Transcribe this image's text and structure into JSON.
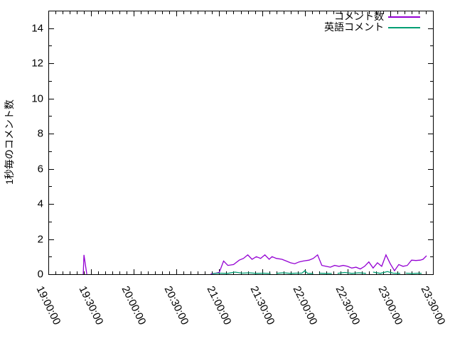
{
  "chart_data": {
    "type": "line",
    "title": "",
    "grid": false,
    "background": "#ffffff",
    "border_color": "#000000",
    "legend_position": "top-right-inside",
    "x_axis": {
      "start_time": "19:00:00",
      "end_time": "23:30:00",
      "tick_interval_minutes": 30,
      "minor_tick_interval_minutes": 5,
      "range_minutes": [
        0,
        270
      ],
      "tick_labels": [
        "19:00:00",
        "19:30:00",
        "20:00:00",
        "20:30:00",
        "21:00:00",
        "21:30:00",
        "22:00:00",
        "22:30:00",
        "23:00:00",
        "23:30:00"
      ]
    },
    "y_axis": {
      "label": "1秒毎のコメント数",
      "min": 0,
      "max": 15,
      "tick_values": [
        0,
        2,
        4,
        6,
        8,
        10,
        12,
        14
      ],
      "tick_labels": [
        "0",
        "2",
        "4",
        "6",
        "8",
        "10",
        "12",
        "14"
      ],
      "minor_tick_values": [
        1,
        3,
        5,
        7,
        9,
        11,
        13,
        15
      ]
    },
    "series": [
      {
        "name": "コメント数",
        "color": "#9400d3",
        "x_unit": "minutes_after_19:00:00",
        "segments": [
          [
            [
              24.5,
              0
            ],
            [
              25,
              1.1
            ],
            [
              27,
              0
            ]
          ],
          [
            [
              114,
              0.02
            ],
            [
              117,
              0.05
            ],
            [
              120,
              0.1
            ],
            [
              123,
              0.75
            ],
            [
              126,
              0.5
            ],
            [
              130,
              0.55
            ],
            [
              134,
              0.8
            ],
            [
              137,
              0.9
            ],
            [
              140,
              1.1
            ],
            [
              143,
              0.85
            ],
            [
              146,
              1.0
            ],
            [
              149,
              0.9
            ],
            [
              152,
              1.1
            ],
            [
              155,
              0.85
            ],
            [
              157,
              1.0
            ],
            [
              160,
              0.9
            ],
            [
              164,
              0.85
            ],
            [
              167,
              0.75
            ],
            [
              170,
              0.65
            ],
            [
              173,
              0.6
            ],
            [
              176,
              0.7
            ],
            [
              179,
              0.75
            ],
            [
              183,
              0.8
            ],
            [
              186,
              0.9
            ],
            [
              189,
              1.1
            ],
            [
              192,
              0.5
            ],
            [
              195,
              0.45
            ],
            [
              198,
              0.4
            ],
            [
              201,
              0.5
            ],
            [
              204,
              0.45
            ],
            [
              207,
              0.5
            ],
            [
              210,
              0.45
            ],
            [
              213,
              0.35
            ],
            [
              216,
              0.4
            ],
            [
              219,
              0.3
            ],
            [
              222,
              0.45
            ],
            [
              225,
              0.7
            ],
            [
              228,
              0.35
            ],
            [
              231,
              0.65
            ],
            [
              234,
              0.45
            ],
            [
              237,
              1.1
            ],
            [
              240,
              0.6
            ],
            [
              243,
              0.2
            ],
            [
              246,
              0.55
            ],
            [
              249,
              0.45
            ],
            [
              252,
              0.5
            ],
            [
              255,
              0.8
            ],
            [
              258,
              0.78
            ],
            [
              261,
              0.8
            ],
            [
              263,
              0.85
            ],
            [
              265.5,
              1.05
            ]
          ]
        ]
      },
      {
        "name": "英語コメント",
        "color": "#009e73",
        "x_unit": "minutes_after_19:00:00",
        "segments": [
          [
            [
              115,
              0.04
            ],
            [
              120,
              0.06
            ],
            [
              126,
              0.05
            ],
            [
              131,
              0.12
            ],
            [
              136,
              0.06
            ],
            [
              141,
              0.08
            ],
            [
              146,
              0.05
            ],
            [
              151,
              0.06
            ],
            [
              156,
              0.04
            ]
          ],
          [
            [
              160,
              0.05
            ],
            [
              165,
              0.08
            ],
            [
              170,
              0.05
            ],
            [
              174,
              0.06
            ],
            [
              178,
              0.06
            ],
            [
              180,
              0.2
            ],
            [
              182,
              0.05
            ],
            [
              186,
              0.04
            ]
          ],
          [
            [
              190,
              0.06
            ],
            [
              194,
              0.05
            ],
            [
              199,
              0.04
            ]
          ],
          [
            [
              203,
              0.05
            ],
            [
              208,
              0.1
            ],
            [
              213,
              0.05
            ],
            [
              218,
              0.08
            ],
            [
              223,
              0.05
            ]
          ],
          [
            [
              228,
              0.12
            ],
            [
              233,
              0.05
            ],
            [
              238,
              0.15
            ],
            [
              242,
              0.06
            ],
            [
              247,
              0.05
            ]
          ],
          [
            [
              251,
              0.06
            ],
            [
              256,
              0.04
            ],
            [
              260,
              0.06
            ],
            [
              262,
              0.05
            ]
          ]
        ]
      }
    ]
  }
}
